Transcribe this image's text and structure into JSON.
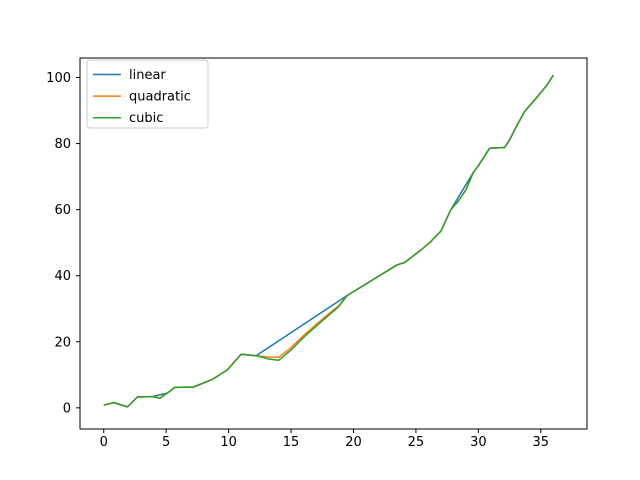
{
  "figure": {
    "background": "#ffffff",
    "frame_color": "#000000",
    "tick_color": "#000000"
  },
  "chart_data": {
    "type": "line",
    "title": "",
    "xlabel": "",
    "ylabel": "",
    "grid": false,
    "xlim": [
      -1.9,
      38.7
    ],
    "ylim": [
      -6.4,
      105.9
    ],
    "xticks": [
      0,
      5,
      10,
      15,
      20,
      25,
      30,
      35
    ],
    "yticks": [
      0,
      20,
      40,
      60,
      80,
      100
    ],
    "legend": {
      "position": "upper left",
      "border_color": "#cccccc",
      "background": "#ffffff",
      "entries": [
        "linear",
        "quadratic",
        "cubic"
      ]
    },
    "series": [
      {
        "name": "linear",
        "color": "#1f77b4",
        "points": [
          [
            0,
            0.8
          ],
          [
            0.8,
            1.6
          ],
          [
            1.9,
            0.3
          ],
          [
            2.7,
            3.3
          ],
          [
            3.9,
            3.4
          ],
          [
            5.1,
            4.5
          ],
          [
            5.7,
            6.2
          ],
          [
            7.2,
            6.3
          ],
          [
            8.7,
            8.6
          ],
          [
            9.9,
            11.5
          ],
          [
            11.0,
            16.2
          ],
          [
            12.2,
            15.8
          ],
          [
            19.5,
            34.0
          ],
          [
            23.5,
            43.3
          ],
          [
            24.1,
            44.0
          ],
          [
            25.3,
            47.5
          ],
          [
            26.1,
            50.0
          ],
          [
            27.0,
            53.5
          ],
          [
            27.8,
            60.0
          ],
          [
            29.6,
            71.3
          ],
          [
            30.0,
            73.3
          ],
          [
            30.9,
            78.6
          ],
          [
            32.1,
            78.8
          ],
          [
            32.5,
            81.1
          ],
          [
            33.1,
            85.6
          ],
          [
            33.7,
            89.7
          ],
          [
            34.6,
            93.6
          ],
          [
            35.5,
            97.7
          ],
          [
            36.0,
            100.7
          ]
        ]
      },
      {
        "name": "quadratic",
        "color": "#ff7f0e",
        "points": [
          [
            0,
            0.8
          ],
          [
            0.8,
            1.6
          ],
          [
            1.9,
            0.3
          ],
          [
            2.7,
            3.3
          ],
          [
            3.9,
            3.4
          ],
          [
            4.5,
            3.0
          ],
          [
            5.1,
            4.5
          ],
          [
            5.7,
            6.2
          ],
          [
            7.2,
            6.3
          ],
          [
            8.7,
            8.6
          ],
          [
            9.9,
            11.5
          ],
          [
            11.0,
            16.2
          ],
          [
            12.2,
            15.8
          ],
          [
            13.2,
            15.4
          ],
          [
            14.0,
            15.3
          ],
          [
            15.0,
            18.2
          ],
          [
            16.0,
            21.9
          ],
          [
            17.0,
            25.2
          ],
          [
            18.0,
            28.4
          ],
          [
            18.8,
            30.9
          ],
          [
            19.5,
            34.0
          ],
          [
            23.5,
            43.3
          ],
          [
            24.1,
            44.0
          ],
          [
            25.3,
            47.5
          ],
          [
            26.1,
            50.0
          ],
          [
            27.0,
            53.5
          ],
          [
            27.8,
            60.0
          ],
          [
            28.4,
            62.6
          ],
          [
            29.0,
            66.0
          ],
          [
            29.6,
            71.3
          ],
          [
            30.0,
            73.3
          ],
          [
            30.9,
            78.6
          ],
          [
            32.1,
            78.8
          ],
          [
            32.5,
            81.1
          ],
          [
            33.1,
            85.6
          ],
          [
            33.7,
            89.7
          ],
          [
            34.6,
            93.6
          ],
          [
            35.5,
            97.7
          ],
          [
            36.0,
            100.7
          ]
        ]
      },
      {
        "name": "cubic",
        "color": "#2ca02c",
        "points": [
          [
            0,
            0.8
          ],
          [
            0.8,
            1.6
          ],
          [
            1.9,
            0.3
          ],
          [
            2.7,
            3.3
          ],
          [
            3.9,
            3.4
          ],
          [
            4.5,
            2.9
          ],
          [
            5.1,
            4.5
          ],
          [
            5.7,
            6.2
          ],
          [
            7.2,
            6.3
          ],
          [
            8.7,
            8.6
          ],
          [
            9.9,
            11.5
          ],
          [
            11.0,
            16.2
          ],
          [
            12.2,
            15.8
          ],
          [
            13.2,
            14.8
          ],
          [
            14.0,
            14.4
          ],
          [
            15.0,
            17.5
          ],
          [
            16.0,
            21.3
          ],
          [
            17.0,
            24.7
          ],
          [
            18.0,
            28.0
          ],
          [
            18.8,
            30.6
          ],
          [
            19.5,
            34.0
          ],
          [
            23.5,
            43.3
          ],
          [
            24.1,
            44.0
          ],
          [
            25.3,
            47.5
          ],
          [
            26.1,
            50.0
          ],
          [
            27.0,
            53.5
          ],
          [
            27.8,
            60.0
          ],
          [
            28.4,
            62.6
          ],
          [
            29.0,
            66.0
          ],
          [
            29.6,
            71.3
          ],
          [
            30.0,
            73.3
          ],
          [
            30.9,
            78.6
          ],
          [
            32.1,
            78.8
          ],
          [
            32.5,
            81.1
          ],
          [
            33.1,
            85.6
          ],
          [
            33.7,
            89.7
          ],
          [
            34.6,
            93.6
          ],
          [
            35.5,
            97.7
          ],
          [
            36.0,
            100.7
          ]
        ]
      }
    ]
  }
}
